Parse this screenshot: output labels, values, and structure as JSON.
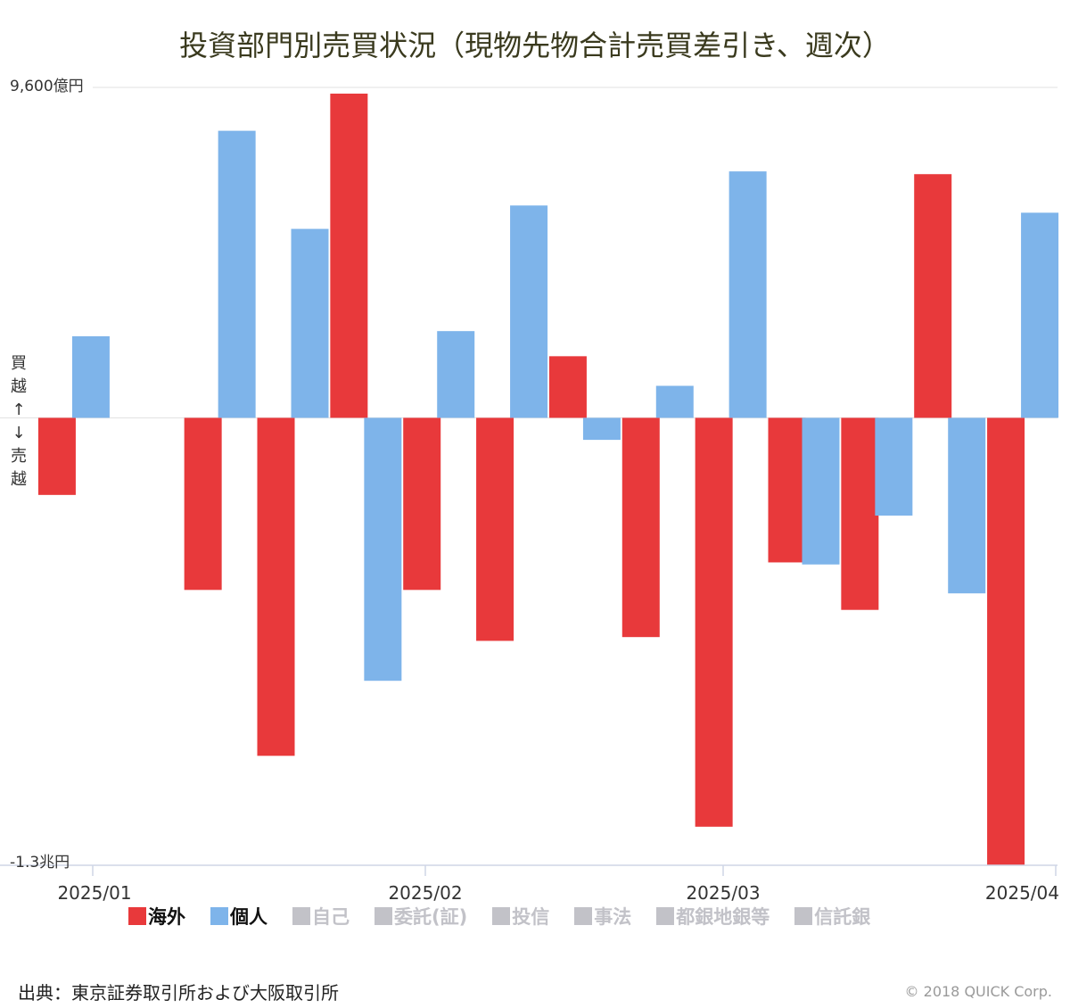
{
  "title": "投資部門別売買状況（現物先物合計売買差引き、週次）",
  "y_axis": {
    "top_label": "9,600億円",
    "bottom_label": "-1.3兆円",
    "buy_sell_label": [
      "買",
      "越",
      "↑",
      "↓",
      "売",
      "越"
    ]
  },
  "legend": [
    {
      "name": "海外",
      "color": "#e8393b",
      "active": true
    },
    {
      "name": "個人",
      "color": "#7eb4ea",
      "active": true
    },
    {
      "name": "自己",
      "color": "#c2c2c8",
      "active": false
    },
    {
      "name": "委託(証)",
      "color": "#c2c2c8",
      "active": false
    },
    {
      "name": "投信",
      "color": "#c2c2c8",
      "active": false
    },
    {
      "name": "事法",
      "color": "#c2c2c8",
      "active": false
    },
    {
      "name": "都銀地銀等",
      "color": "#c2c2c8",
      "active": false
    },
    {
      "name": "信託銀",
      "color": "#c2c2c8",
      "active": false
    }
  ],
  "source": "出典：東京証券取引所および大阪取引所",
  "copyright": "© 2018 QUICK Corp.",
  "colors": {
    "foreign": "#e8393b",
    "individual": "#7eb4ea",
    "axis": "#cfd6e6"
  },
  "chart_data": {
    "type": "bar",
    "unit": "億円",
    "ylim": [
      -13000,
      9600
    ],
    "x_tick_labels": [
      "2025/01",
      "2025/02",
      "2025/03",
      "2025/04"
    ],
    "x_tick_after_week": [
      1,
      6,
      10,
      14
    ],
    "weeks": 14,
    "series": [
      {
        "name": "海外",
        "values": [
          -2240,
          -5000,
          -9820,
          9420,
          -5000,
          -6480,
          1790,
          -6370,
          -11880,
          -4200,
          -5580,
          7080,
          -13000
        ]
      },
      {
        "name": "個人",
        "values": [
          2370,
          8340,
          5490,
          -7640,
          2520,
          6170,
          -640,
          930,
          7160,
          -4260,
          -2840,
          -5100,
          5960
        ]
      }
    ],
    "series_slots": {
      "海外": [
        0,
        2,
        3,
        4,
        5,
        6,
        7,
        8,
        9,
        10,
        11,
        12,
        13
      ],
      "個人": [
        0,
        2,
        3,
        4,
        5,
        6,
        7,
        8,
        9,
        10,
        11,
        12,
        13
      ]
    }
  }
}
